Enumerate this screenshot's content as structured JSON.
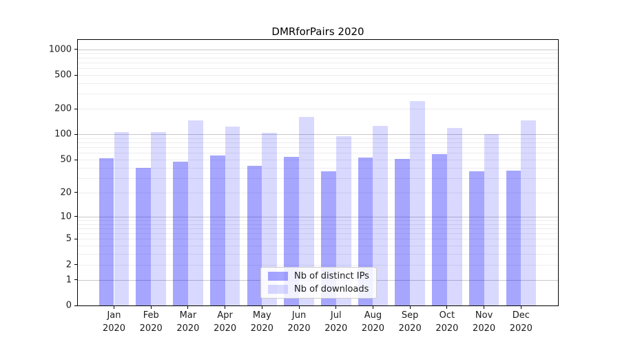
{
  "figure": {
    "background": "#ffffff"
  },
  "chart_data": {
    "type": "bar",
    "title": "DMRforPairs 2020",
    "xlabel": "",
    "ylabel": "",
    "yscale": "log1p",
    "ylim": [
      0,
      1290
    ],
    "grid": "horizontal",
    "legend_position": "lower-center-inside",
    "y_ticks": [
      1000,
      500,
      200,
      100,
      50,
      20,
      10,
      5,
      2,
      1,
      0
    ],
    "categories": [
      {
        "label": "Jan",
        "sub": "2020"
      },
      {
        "label": "Feb",
        "sub": "2020"
      },
      {
        "label": "Mar",
        "sub": "2020"
      },
      {
        "label": "Apr",
        "sub": "2020"
      },
      {
        "label": "May",
        "sub": "2020"
      },
      {
        "label": "Jun",
        "sub": "2020"
      },
      {
        "label": "Jul",
        "sub": "2020"
      },
      {
        "label": "Aug",
        "sub": "2020"
      },
      {
        "label": "Sep",
        "sub": "2020"
      },
      {
        "label": "Oct",
        "sub": "2020"
      },
      {
        "label": "Nov",
        "sub": "2020"
      },
      {
        "label": "Dec",
        "sub": "2020"
      }
    ],
    "series": [
      {
        "name": "Nb of distinct IPs",
        "color": "#0000ff",
        "opacity": 0.35,
        "blended_hex": "#a6a6ff",
        "values": [
          52,
          40,
          47,
          56,
          42,
          54,
          36,
          53,
          51,
          58,
          36,
          37
        ]
      },
      {
        "name": "Nb of downloads",
        "color": "#0000ff",
        "opacity": 0.15,
        "blended_hex": "#d9d9ff",
        "values": [
          107,
          107,
          145,
          123,
          104,
          160,
          96,
          125,
          247,
          119,
          101,
          146
        ]
      }
    ],
    "axis_colors": {
      "frame": "#000000",
      "major_grid": "#c8c8c8",
      "minor_grid": "#ededed",
      "text": "#1a1a1a"
    }
  }
}
